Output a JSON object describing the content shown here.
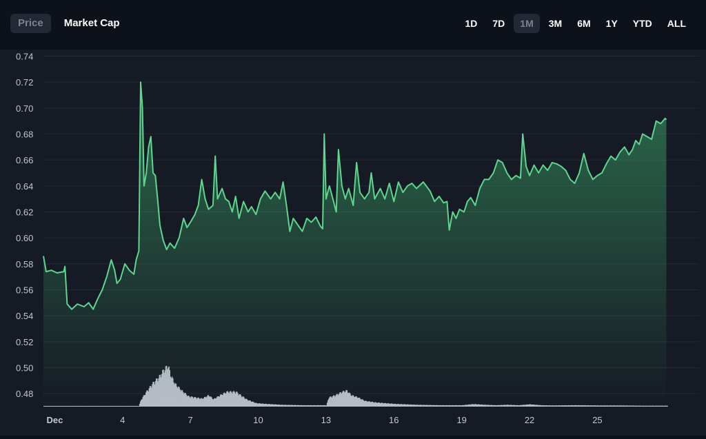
{
  "mode_tabs": [
    {
      "label": "Price",
      "active": true
    },
    {
      "label": "Market Cap",
      "active": false
    }
  ],
  "range_tabs": [
    {
      "label": "1D",
      "active": false
    },
    {
      "label": "7D",
      "active": false
    },
    {
      "label": "1M",
      "active": true
    },
    {
      "label": "3M",
      "active": false
    },
    {
      "label": "6M",
      "active": false
    },
    {
      "label": "1Y",
      "active": false
    },
    {
      "label": "YTD",
      "active": false
    },
    {
      "label": "ALL",
      "active": false
    }
  ],
  "colors": {
    "line": "#5fd68e",
    "volume": "#b7bcc6",
    "grid": "#232834",
    "tick": "#c3c7d0"
  },
  "chart_data": {
    "type": "line",
    "title": "",
    "xlabel": "",
    "ylabel": "",
    "ylim": [
      0.47,
      0.745
    ],
    "y_ticks": [
      0.74,
      0.72,
      0.7,
      0.68,
      0.66,
      0.64,
      0.62,
      0.6,
      0.58,
      0.56,
      0.54,
      0.52,
      0.5,
      0.48
    ],
    "y_tick_labels": [
      "0.74",
      "0.72",
      "0.70",
      "0.68",
      "0.66",
      "0.64",
      "0.62",
      "0.60",
      "0.58",
      "0.56",
      "0.54",
      "0.52",
      "0.50",
      "0.48"
    ],
    "xlim": [
      0.5,
      29.5
    ],
    "x_ticks": [
      {
        "day": 1,
        "label": "Dec",
        "bold": true
      },
      {
        "day": 4,
        "label": "4"
      },
      {
        "day": 7,
        "label": "7"
      },
      {
        "day": 10,
        "label": "10"
      },
      {
        "day": 13,
        "label": "13"
      },
      {
        "day": 16,
        "label": "16"
      },
      {
        "day": 19,
        "label": "19"
      },
      {
        "day": 22,
        "label": "22"
      },
      {
        "day": 25,
        "label": "25"
      }
    ],
    "price": [
      [
        0.5,
        0.586
      ],
      [
        0.62,
        0.574
      ],
      [
        0.85,
        0.575
      ],
      [
        1.1,
        0.573
      ],
      [
        1.4,
        0.574
      ],
      [
        1.45,
        0.578
      ],
      [
        1.55,
        0.549
      ],
      [
        1.75,
        0.545
      ],
      [
        2.0,
        0.549
      ],
      [
        2.3,
        0.547
      ],
      [
        2.5,
        0.55
      ],
      [
        2.7,
        0.545
      ],
      [
        2.9,
        0.553
      ],
      [
        3.1,
        0.56
      ],
      [
        3.3,
        0.57
      ],
      [
        3.5,
        0.583
      ],
      [
        3.65,
        0.575
      ],
      [
        3.75,
        0.565
      ],
      [
        3.9,
        0.568
      ],
      [
        4.1,
        0.58
      ],
      [
        4.3,
        0.575
      ],
      [
        4.5,
        0.572
      ],
      [
        4.6,
        0.583
      ],
      [
        4.72,
        0.59
      ],
      [
        4.8,
        0.72
      ],
      [
        4.88,
        0.7
      ],
      [
        4.95,
        0.64
      ],
      [
        5.05,
        0.65
      ],
      [
        5.15,
        0.67
      ],
      [
        5.25,
        0.678
      ],
      [
        5.35,
        0.65
      ],
      [
        5.45,
        0.648
      ],
      [
        5.55,
        0.63
      ],
      [
        5.65,
        0.61
      ],
      [
        5.8,
        0.598
      ],
      [
        5.95,
        0.591
      ],
      [
        6.1,
        0.596
      ],
      [
        6.3,
        0.592
      ],
      [
        6.5,
        0.6
      ],
      [
        6.7,
        0.615
      ],
      [
        6.85,
        0.608
      ],
      [
        7.0,
        0.612
      ],
      [
        7.2,
        0.618
      ],
      [
        7.35,
        0.625
      ],
      [
        7.5,
        0.645
      ],
      [
        7.65,
        0.63
      ],
      [
        7.8,
        0.622
      ],
      [
        8.0,
        0.625
      ],
      [
        8.1,
        0.663
      ],
      [
        8.2,
        0.63
      ],
      [
        8.4,
        0.638
      ],
      [
        8.55,
        0.63
      ],
      [
        8.7,
        0.628
      ],
      [
        8.85,
        0.62
      ],
      [
        9.0,
        0.632
      ],
      [
        9.15,
        0.615
      ],
      [
        9.35,
        0.628
      ],
      [
        9.55,
        0.62
      ],
      [
        9.7,
        0.624
      ],
      [
        9.9,
        0.618
      ],
      [
        10.1,
        0.63
      ],
      [
        10.3,
        0.636
      ],
      [
        10.55,
        0.63
      ],
      [
        10.75,
        0.635
      ],
      [
        10.95,
        0.63
      ],
      [
        11.1,
        0.643
      ],
      [
        11.25,
        0.625
      ],
      [
        11.4,
        0.605
      ],
      [
        11.55,
        0.615
      ],
      [
        11.75,
        0.61
      ],
      [
        11.95,
        0.605
      ],
      [
        12.15,
        0.615
      ],
      [
        12.35,
        0.612
      ],
      [
        12.55,
        0.616
      ],
      [
        12.75,
        0.609
      ],
      [
        12.85,
        0.607
      ],
      [
        12.92,
        0.68
      ],
      [
        13.0,
        0.63
      ],
      [
        13.15,
        0.64
      ],
      [
        13.3,
        0.63
      ],
      [
        13.45,
        0.62
      ],
      [
        13.55,
        0.668
      ],
      [
        13.7,
        0.64
      ],
      [
        13.85,
        0.63
      ],
      [
        14.0,
        0.638
      ],
      [
        14.2,
        0.625
      ],
      [
        14.35,
        0.658
      ],
      [
        14.5,
        0.635
      ],
      [
        14.7,
        0.63
      ],
      [
        14.9,
        0.635
      ],
      [
        15.0,
        0.65
      ],
      [
        15.15,
        0.63
      ],
      [
        15.4,
        0.638
      ],
      [
        15.6,
        0.63
      ],
      [
        15.8,
        0.642
      ],
      [
        16.0,
        0.628
      ],
      [
        16.2,
        0.643
      ],
      [
        16.4,
        0.635
      ],
      [
        16.6,
        0.64
      ],
      [
        16.8,
        0.642
      ],
      [
        17.0,
        0.638
      ],
      [
        17.3,
        0.643
      ],
      [
        17.6,
        0.636
      ],
      [
        17.8,
        0.628
      ],
      [
        18.0,
        0.632
      ],
      [
        18.2,
        0.627
      ],
      [
        18.35,
        0.628
      ],
      [
        18.45,
        0.606
      ],
      [
        18.6,
        0.62
      ],
      [
        18.75,
        0.615
      ],
      [
        18.9,
        0.622
      ],
      [
        19.1,
        0.62
      ],
      [
        19.25,
        0.628
      ],
      [
        19.4,
        0.631
      ],
      [
        19.6,
        0.625
      ],
      [
        19.8,
        0.638
      ],
      [
        20.0,
        0.645
      ],
      [
        20.2,
        0.645
      ],
      [
        20.4,
        0.65
      ],
      [
        20.6,
        0.66
      ],
      [
        20.8,
        0.658
      ],
      [
        21.0,
        0.65
      ],
      [
        21.2,
        0.645
      ],
      [
        21.4,
        0.648
      ],
      [
        21.6,
        0.646
      ],
      [
        21.7,
        0.68
      ],
      [
        21.85,
        0.655
      ],
      [
        22.0,
        0.648
      ],
      [
        22.2,
        0.656
      ],
      [
        22.4,
        0.65
      ],
      [
        22.6,
        0.656
      ],
      [
        22.8,
        0.652
      ],
      [
        23.0,
        0.658
      ],
      [
        23.2,
        0.657
      ],
      [
        23.4,
        0.655
      ],
      [
        23.6,
        0.652
      ],
      [
        23.8,
        0.645
      ],
      [
        24.0,
        0.642
      ],
      [
        24.2,
        0.65
      ],
      [
        24.4,
        0.665
      ],
      [
        24.6,
        0.652
      ],
      [
        24.8,
        0.645
      ],
      [
        25.0,
        0.648
      ],
      [
        25.2,
        0.65
      ],
      [
        25.4,
        0.657
      ],
      [
        25.6,
        0.663
      ],
      [
        25.8,
        0.66
      ],
      [
        26.0,
        0.666
      ],
      [
        26.2,
        0.67
      ],
      [
        26.4,
        0.664
      ],
      [
        26.55,
        0.668
      ],
      [
        26.7,
        0.675
      ],
      [
        26.85,
        0.672
      ],
      [
        27.0,
        0.68
      ],
      [
        27.2,
        0.678
      ],
      [
        27.4,
        0.676
      ],
      [
        27.6,
        0.69
      ],
      [
        27.8,
        0.688
      ],
      [
        28.0,
        0.692
      ],
      [
        28.05,
        0.691
      ]
    ],
    "volume": [
      [
        0.5,
        0.3
      ],
      [
        4.7,
        0.3
      ],
      [
        4.8,
        3
      ],
      [
        5.0,
        6
      ],
      [
        5.3,
        10
      ],
      [
        5.6,
        13
      ],
      [
        5.8,
        16
      ],
      [
        6.0,
        18
      ],
      [
        6.1,
        14
      ],
      [
        6.3,
        10
      ],
      [
        6.6,
        7
      ],
      [
        6.9,
        4.5
      ],
      [
        7.2,
        4
      ],
      [
        7.5,
        3.5
      ],
      [
        7.8,
        5
      ],
      [
        8.0,
        3.2
      ],
      [
        8.3,
        5
      ],
      [
        8.6,
        6.5
      ],
      [
        9.0,
        6.5
      ],
      [
        9.2,
        5
      ],
      [
        9.5,
        3
      ],
      [
        9.9,
        1.5
      ],
      [
        10.3,
        1.2
      ],
      [
        11.0,
        0.8
      ],
      [
        12.0,
        0.6
      ],
      [
        13.0,
        0.6
      ],
      [
        13.1,
        4
      ],
      [
        13.4,
        5
      ],
      [
        13.7,
        6.5
      ],
      [
        13.9,
        7
      ],
      [
        14.1,
        5
      ],
      [
        14.4,
        4
      ],
      [
        14.7,
        2.5
      ],
      [
        15.2,
        1.8
      ],
      [
        16.0,
        1.2
      ],
      [
        17.0,
        0.8
      ],
      [
        18.0,
        0.6
      ],
      [
        19.0,
        0.6
      ],
      [
        19.5,
        1.1
      ],
      [
        20.0,
        0.8
      ],
      [
        20.5,
        0.6
      ],
      [
        21.0,
        0.8
      ],
      [
        21.5,
        0.6
      ],
      [
        22.0,
        1.0
      ],
      [
        22.5,
        0.6
      ],
      [
        23.0,
        0.5
      ],
      [
        24.0,
        0.6
      ],
      [
        25.0,
        0.5
      ],
      [
        26.0,
        0.5
      ],
      [
        27.0,
        0.4
      ],
      [
        28.1,
        0.4
      ]
    ],
    "volume_max": 20
  }
}
